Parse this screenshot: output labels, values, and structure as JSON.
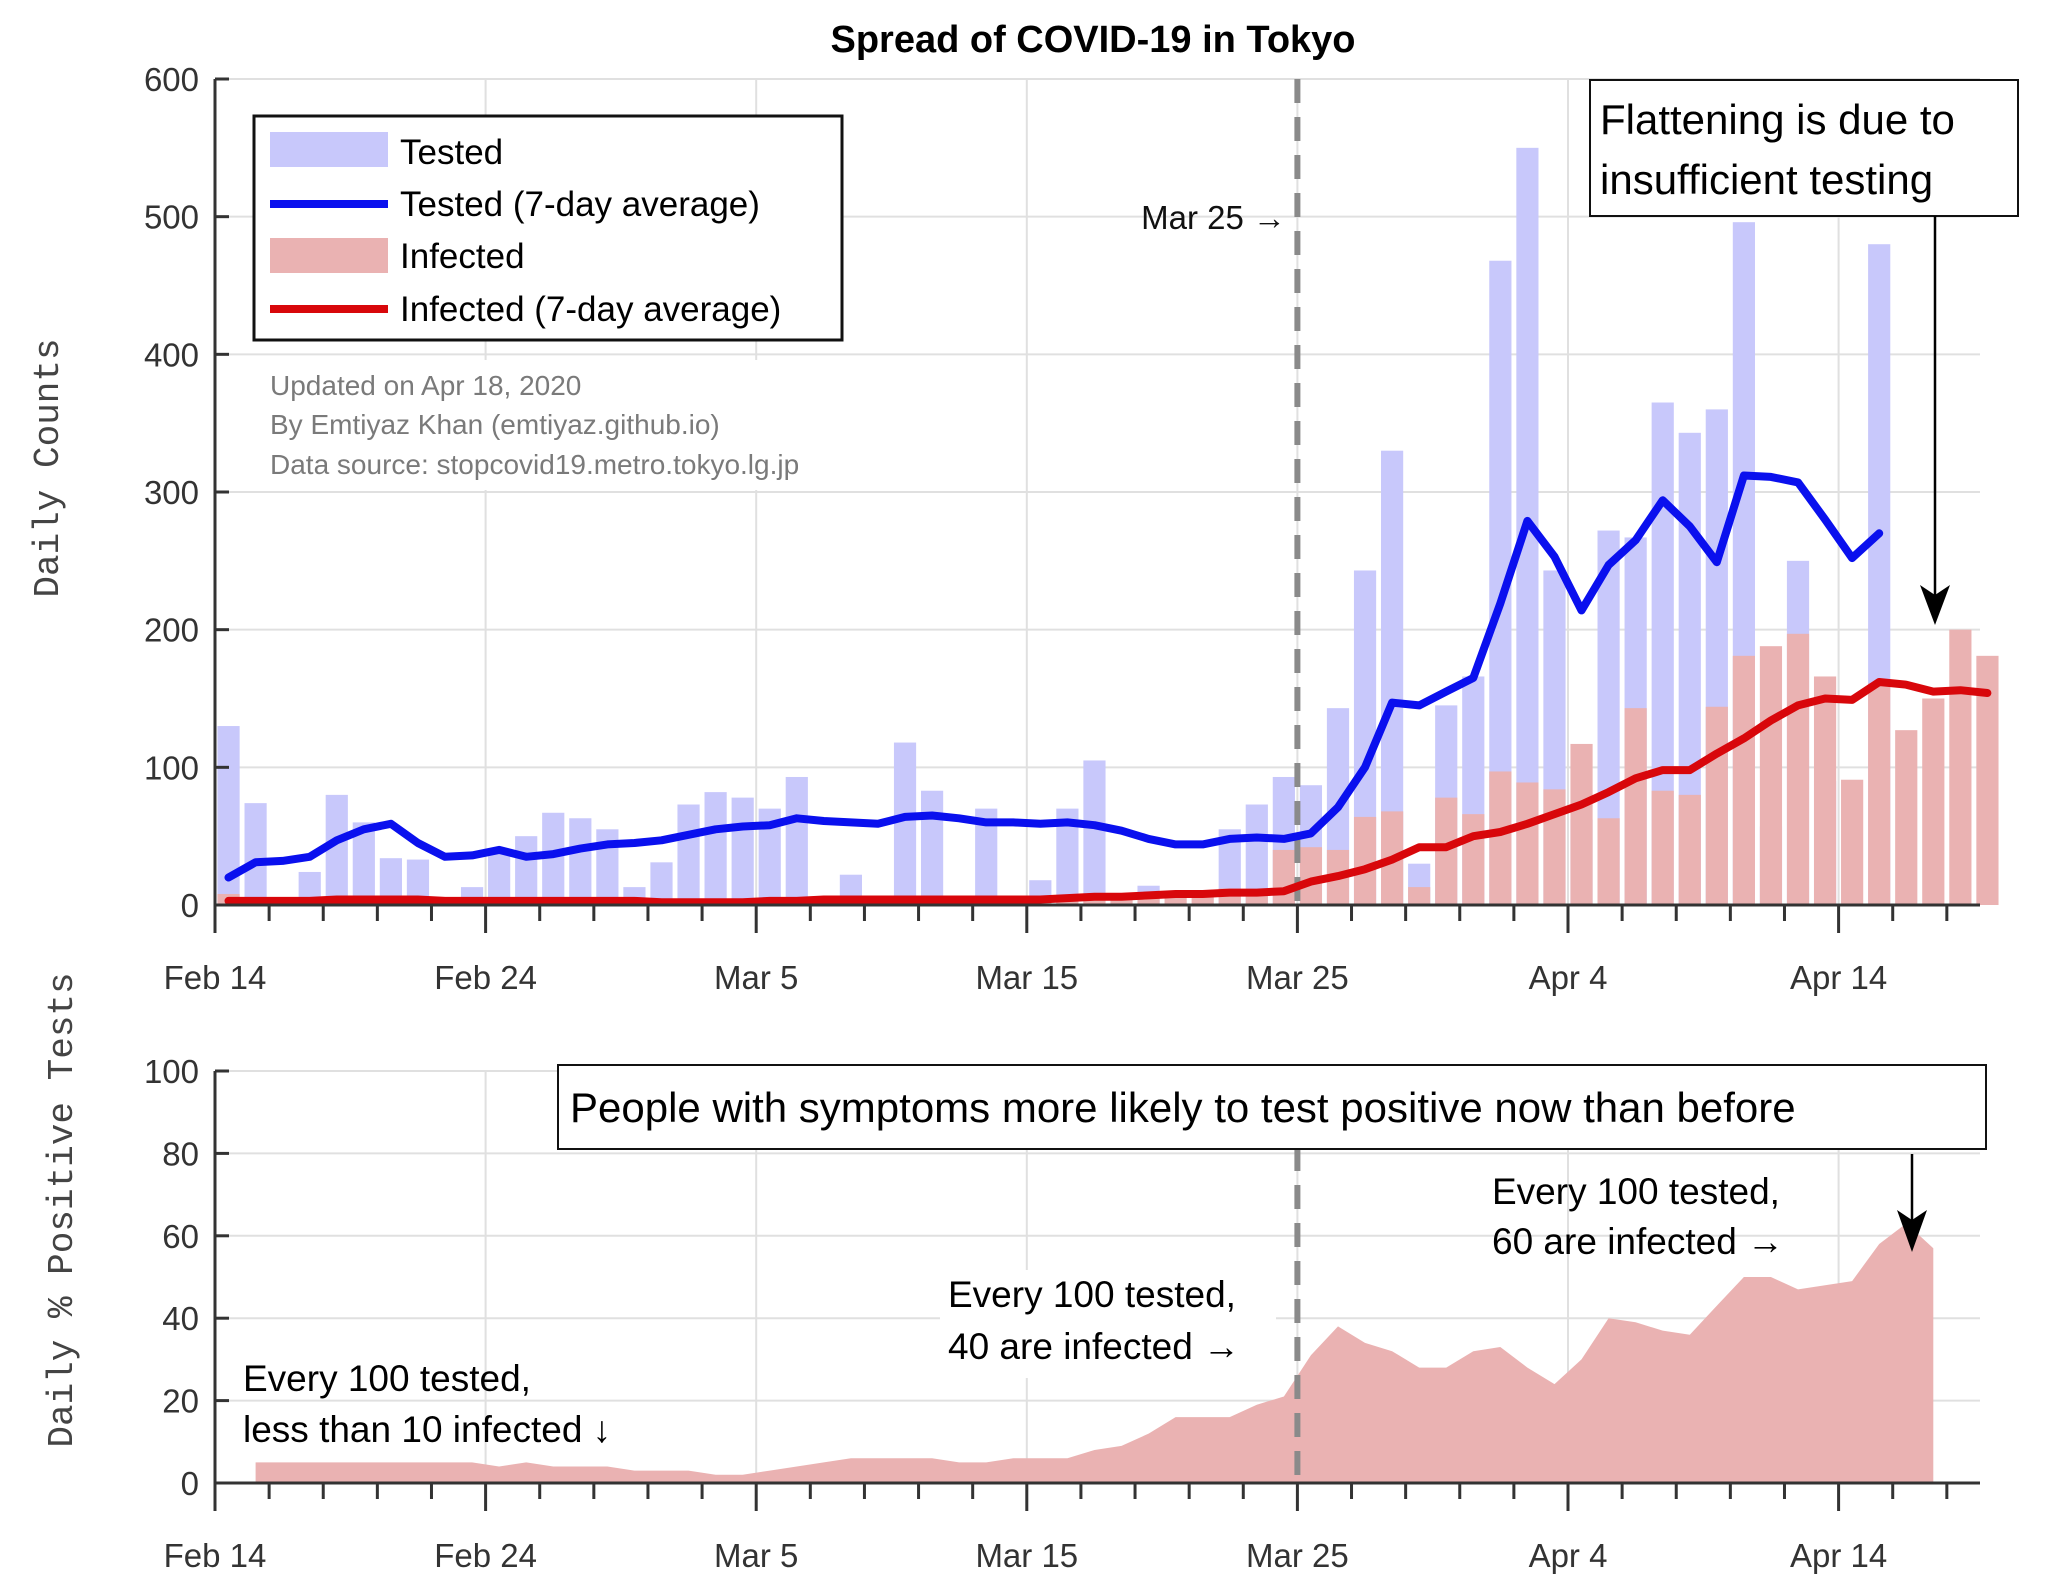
{
  "title": "Spread of COVID-19 in Tokyo",
  "colors": {
    "tested_bar": "#c8c8fb",
    "tested_line": "#0a10ee",
    "infected_bar": "#eab2b2",
    "infected_line": "#d8070b",
    "grid": "#e0e0e0",
    "axis": "#333333",
    "marker": "#8a8a8a"
  },
  "legend": {
    "tested": "Tested",
    "tested_avg": "Tested (7-day average)",
    "infected": "Infected",
    "infected_avg": "Infected (7-day average)"
  },
  "credits": {
    "updated": "Updated on Apr 18, 2020",
    "author": "By Emtiyaz Khan (emtiyaz.github.io)",
    "source": "Data source: stopcovid19.metro.tokyo.lg.jp"
  },
  "annotations": {
    "mar25": "Mar 25 →",
    "flattening_1": "Flattening is due to",
    "flattening_2": "insufficient testing",
    "symptoms": "People with symptoms more likely to test positive now than before",
    "every_60_1": "Every 100 tested,",
    "every_60_2": "60 are infected →",
    "every_40_1": "Every 100 tested,",
    "every_40_2": "40 are infected →",
    "every_10_1": "Every 100 tested,",
    "every_10_2": "less than 10 infected ↓"
  },
  "chart_data": [
    {
      "type": "bar",
      "ylabel": "Daily Counts",
      "xlabel": "",
      "ylim": [
        0,
        600
      ],
      "yticks": [
        0,
        100,
        200,
        300,
        400,
        500,
        600
      ],
      "x_start": "2020-02-14",
      "xticks": [
        "Feb 14",
        "Feb 24",
        "Mar 5",
        "Mar 15",
        "Mar 25",
        "Apr 4",
        "Apr 14"
      ],
      "legend_position": "top-left",
      "grid": true,
      "reference_line": "2020-03-25",
      "series": [
        {
          "name": "Tested",
          "style": "bar",
          "values": [
            130,
            74,
            0,
            24,
            80,
            60,
            34,
            33,
            0,
            13,
            40,
            50,
            67,
            63,
            55,
            13,
            31,
            73,
            82,
            78,
            70,
            93,
            0,
            22,
            0,
            118,
            83,
            0,
            70,
            0,
            18,
            70,
            105,
            0,
            14,
            0,
            0,
            55,
            73,
            93,
            87,
            143,
            243,
            330,
            30,
            145,
            166,
            468,
            550,
            243,
            62,
            272,
            267,
            365,
            343,
            360,
            496,
            57,
            250,
            90,
            0,
            480,
            0
          ]
        },
        {
          "name": "Tested (7-day average)",
          "style": "line",
          "values": [
            20,
            31,
            32,
            35,
            47,
            55,
            59,
            45,
            35,
            36,
            40,
            35,
            37,
            41,
            44,
            45,
            47,
            51,
            55,
            57,
            58,
            63,
            61,
            60,
            59,
            64,
            65,
            63,
            60,
            60,
            59,
            60,
            58,
            54,
            48,
            44,
            44,
            48,
            49,
            48,
            52,
            71,
            100,
            147,
            145,
            155,
            165,
            219,
            279,
            253,
            214,
            247,
            265,
            294,
            275,
            249,
            312,
            311,
            307,
            280,
            252,
            270,
            null
          ]
        },
        {
          "name": "Infected",
          "style": "bar",
          "values": [
            8,
            0,
            0,
            3,
            3,
            3,
            3,
            2,
            1,
            0,
            2,
            1,
            2,
            1,
            1,
            1,
            1,
            2,
            2,
            2,
            3,
            4,
            5,
            4,
            5,
            6,
            5,
            4,
            5,
            5,
            5,
            7,
            8,
            7,
            8,
            7,
            7,
            12,
            10,
            40,
            42,
            40,
            64,
            68,
            13,
            78,
            66,
            97,
            89,
            84,
            117,
            63,
            143,
            83,
            80,
            144,
            181,
            188,
            197,
            166,
            91,
            161,
            127,
            150,
            200,
            181
          ]
        },
        {
          "name": "Infected (7-day average)",
          "style": "line",
          "values": [
            3,
            3,
            3,
            3,
            4,
            4,
            4,
            4,
            3,
            3,
            3,
            3,
            3,
            3,
            3,
            3,
            2,
            2,
            2,
            2,
            3,
            3,
            4,
            4,
            4,
            4,
            4,
            4,
            4,
            4,
            4,
            5,
            6,
            6,
            7,
            8,
            8,
            9,
            9,
            10,
            17,
            21,
            26,
            33,
            42,
            42,
            50,
            53,
            59,
            66,
            73,
            82,
            92,
            98,
            98,
            110,
            121,
            134,
            145,
            150,
            149,
            162,
            160,
            155,
            156,
            154
          ]
        }
      ]
    },
    {
      "type": "area",
      "ylabel": "Daily % Positive Tests",
      "xlabel": "",
      "ylim": [
        0,
        100
      ],
      "yticks": [
        0,
        20,
        40,
        60,
        80,
        100
      ],
      "x_start": "2020-02-14",
      "xticks": [
        "Feb 14",
        "Feb 24",
        "Mar 5",
        "Mar 15",
        "Mar 25",
        "Apr 4",
        "Apr 14"
      ],
      "grid": true,
      "reference_line": "2020-03-25",
      "series": [
        {
          "name": "Daily % Positive Tests",
          "values": [
            null,
            5,
            5,
            5,
            5,
            5,
            5,
            5,
            5,
            5,
            4,
            5,
            4,
            4,
            4,
            3,
            3,
            3,
            2,
            2,
            3,
            4,
            5,
            6,
            6,
            6,
            6,
            5,
            5,
            6,
            6,
            6,
            8,
            9,
            12,
            16,
            16,
            16,
            19,
            21,
            31,
            38,
            34,
            32,
            28,
            28,
            32,
            33,
            28,
            24,
            30,
            40,
            39,
            37,
            36,
            43,
            50,
            50,
            47,
            48,
            49,
            58,
            63,
            57
          ]
        }
      ]
    }
  ]
}
